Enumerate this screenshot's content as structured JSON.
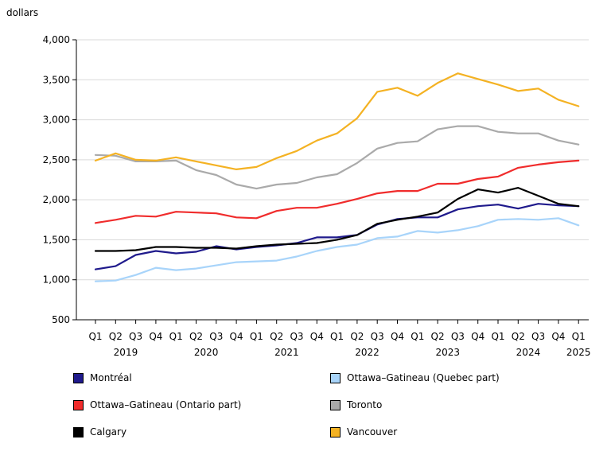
{
  "chart_data": {
    "type": "line",
    "ylabel": "dollars",
    "ylim": [
      500,
      4000
    ],
    "yticks": [
      500,
      1000,
      1500,
      2000,
      2500,
      3000,
      3500,
      4000
    ],
    "ytick_labels": [
      "500",
      "1,000",
      "1,500",
      "2,000",
      "2,500",
      "3,000",
      "3,500",
      "4,000"
    ],
    "quarters": [
      "Q1",
      "Q2",
      "Q3",
      "Q4",
      "Q1",
      "Q2",
      "Q3",
      "Q4",
      "Q1",
      "Q2",
      "Q3",
      "Q4",
      "Q1",
      "Q2",
      "Q3",
      "Q4",
      "Q1",
      "Q2",
      "Q3",
      "Q4",
      "Q1",
      "Q2",
      "Q3",
      "Q4",
      "Q1"
    ],
    "years": [
      {
        "label": "2019",
        "start": 0,
        "end": 3
      },
      {
        "label": "2020",
        "start": 4,
        "end": 7
      },
      {
        "label": "2021",
        "start": 8,
        "end": 11
      },
      {
        "label": "2022",
        "start": 12,
        "end": 15
      },
      {
        "label": "2023",
        "start": 16,
        "end": 19
      },
      {
        "label": "2024",
        "start": 20,
        "end": 23
      },
      {
        "label": "2025",
        "start": 24,
        "end": 24
      }
    ],
    "grid": "horizontal",
    "legend_position": "bottom",
    "series": [
      {
        "name": "Montréal",
        "color": "#1f1a8c",
        "values": [
          1130,
          1170,
          1310,
          1360,
          1330,
          1350,
          1420,
          1380,
          1410,
          1430,
          1460,
          1530,
          1530,
          1560,
          1690,
          1760,
          1780,
          1780,
          1880,
          1920,
          1940,
          1890,
          1950,
          1930,
          1920
        ]
      },
      {
        "name": "Ottawa–Gatineau (Quebec part)",
        "color": "#a8d4fa",
        "values": [
          980,
          990,
          1060,
          1150,
          1120,
          1140,
          1180,
          1220,
          1230,
          1240,
          1290,
          1360,
          1410,
          1440,
          1520,
          1540,
          1610,
          1590,
          1620,
          1670,
          1750,
          1760,
          1750,
          1770,
          1680
        ]
      },
      {
        "name": "Ottawa–Gatineau (Ontario part)",
        "color": "#f02c2c",
        "values": [
          1710,
          1750,
          1800,
          1790,
          1850,
          1840,
          1830,
          1780,
          1770,
          1860,
          1900,
          1900,
          1950,
          2010,
          2080,
          2110,
          2110,
          2200,
          2200,
          2260,
          2290,
          2400,
          2440,
          2470,
          2490
        ]
      },
      {
        "name": "Toronto",
        "color": "#aaaaaa",
        "values": [
          2560,
          2550,
          2480,
          2480,
          2490,
          2370,
          2310,
          2190,
          2140,
          2190,
          2210,
          2280,
          2320,
          2460,
          2640,
          2710,
          2730,
          2880,
          2920,
          2920,
          2850,
          2830,
          2830,
          2740,
          2690
        ]
      },
      {
        "name": "Calgary",
        "color": "#000000",
        "values": [
          1360,
          1360,
          1370,
          1410,
          1410,
          1400,
          1400,
          1390,
          1420,
          1440,
          1450,
          1460,
          1500,
          1560,
          1700,
          1750,
          1790,
          1840,
          2010,
          2130,
          2090,
          2150,
          2050,
          1950,
          1920
        ]
      },
      {
        "name": "Vancouver",
        "color": "#f4b223",
        "values": [
          2490,
          2580,
          2500,
          2490,
          2530,
          2480,
          2430,
          2380,
          2410,
          2520,
          2610,
          2740,
          2830,
          3020,
          3350,
          3400,
          3300,
          3460,
          3580,
          3510,
          3440,
          3360,
          3390,
          3250,
          3170
        ]
      }
    ]
  }
}
